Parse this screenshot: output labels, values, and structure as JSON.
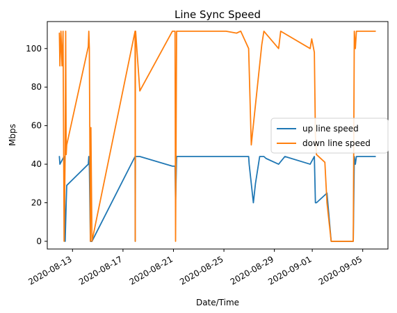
{
  "chart_data": {
    "type": "line",
    "title": "Line Sync Speed",
    "xlabel": "Date/Time",
    "ylabel": "Mbps",
    "x_ticks": [
      "2020-08-13",
      "2020-08-17",
      "2020-08-21",
      "2020-08-25",
      "2020-08-29",
      "2020-09-01",
      "2020-09-05"
    ],
    "y_ticks": [
      "0",
      "20",
      "40",
      "60",
      "80",
      "100"
    ],
    "xlim": [
      "2020-08-11",
      "2020-09-07"
    ],
    "ylim": [
      -4,
      114
    ],
    "grid": false,
    "legend_position": "center-right",
    "series": [
      {
        "name": "up line speed",
        "color": "#1f77b4",
        "x": [
          "2020-08-11T23:00",
          "2020-08-12T00:00",
          "2020-08-12T08:00",
          "2020-08-12T10:00",
          "2020-08-12T12:00",
          "2020-08-12T13:00",
          "2020-08-14T06:00",
          "2020-08-14T07:00",
          "2020-08-14T08:00",
          "2020-08-14T10:00",
          "2020-08-14T13:00",
          "2020-08-17T23:00",
          "2020-08-17T23:20",
          "2020-08-17T23:40",
          "2020-08-18T00:00",
          "2020-08-18T08:00",
          "2020-08-20T22:00",
          "2020-08-21T03:00",
          "2020-08-21T04:00",
          "2020-08-21T06:00",
          "2020-08-21T10:00",
          "2020-08-21T12:00",
          "2020-08-26T23:00",
          "2020-08-27T00:00",
          "2020-08-27T08:00",
          "2020-08-27T12:00",
          "2020-08-27T20:00",
          "2020-08-28T04:00",
          "2020-08-28T08:00",
          "2020-08-29T08:00",
          "2020-08-29T20:00",
          "2020-08-31T20:00",
          "2020-09-01T04:00",
          "2020-09-01T06:00",
          "2020-09-01T08:00",
          "2020-09-02T04:00",
          "2020-09-02T12:00",
          "2020-09-03T03:00",
          "2020-09-04T06:00",
          "2020-09-04T08:00",
          "2020-09-04T10:00",
          "2020-09-04T12:00",
          "2020-09-06T00:00"
        ],
        "y": [
          44,
          40,
          44,
          0,
          20,
          29,
          40,
          44,
          40,
          0,
          0,
          44,
          0,
          44,
          44,
          44,
          39,
          39,
          20,
          44,
          44,
          44,
          44,
          40,
          20,
          30,
          44,
          44,
          43,
          40,
          44,
          40,
          44,
          20,
          20,
          25,
          0,
          0,
          0,
          44,
          40,
          44,
          44
        ]
      },
      {
        "name": "down line speed",
        "color": "#ff7f0e",
        "x": [
          "2020-08-11T23:00",
          "2020-08-12T00:00",
          "2020-08-12T02:00",
          "2020-08-12T04:00",
          "2020-08-12T06:00",
          "2020-08-12T08:00",
          "2020-08-12T10:00",
          "2020-08-12T11:00",
          "2020-08-12T12:00",
          "2020-08-12T13:00",
          "2020-08-14T06:00",
          "2020-08-14T07:00",
          "2020-08-14T08:00",
          "2020-08-14T10:00",
          "2020-08-14T11:00",
          "2020-08-14T13:00",
          "2020-08-17T23:00",
          "2020-08-17T23:20",
          "2020-08-17T23:40",
          "2020-08-18T00:00",
          "2020-08-18T08:00",
          "2020-08-20T22:00",
          "2020-08-21T03:00",
          "2020-08-21T04:00",
          "2020-08-21T06:00",
          "2020-08-21T12:00",
          "2020-08-25T04:00",
          "2020-08-26T00:00",
          "2020-08-26T08:00",
          "2020-08-26T23:00",
          "2020-08-27T04:00",
          "2020-08-28T00:00",
          "2020-08-28T04:00",
          "2020-08-29T08:00",
          "2020-08-29T12:00",
          "2020-08-31T20:00",
          "2020-08-31T23:00",
          "2020-09-01T04:00",
          "2020-09-01T06:00",
          "2020-09-01T08:00",
          "2020-09-02T00:00",
          "2020-09-02T04:00",
          "2020-09-02T12:00",
          "2020-09-03T03:00",
          "2020-09-04T06:00",
          "2020-09-04T08:00",
          "2020-09-04T10:00",
          "2020-09-04T12:00",
          "2020-09-06T00:00"
        ],
        "y": [
          108,
          91,
          109,
          91,
          109,
          0,
          45,
          109,
          45,
          50,
          101,
          109,
          100,
          0,
          59,
          0,
          109,
          0,
          109,
          109,
          78,
          109,
          109,
          0,
          109,
          109,
          109,
          108,
          109,
          100,
          50,
          102,
          109,
          100,
          109,
          100,
          105,
          98,
          55,
          45,
          41,
          20,
          0,
          0,
          0,
          109,
          100,
          109,
          109
        ]
      }
    ]
  }
}
